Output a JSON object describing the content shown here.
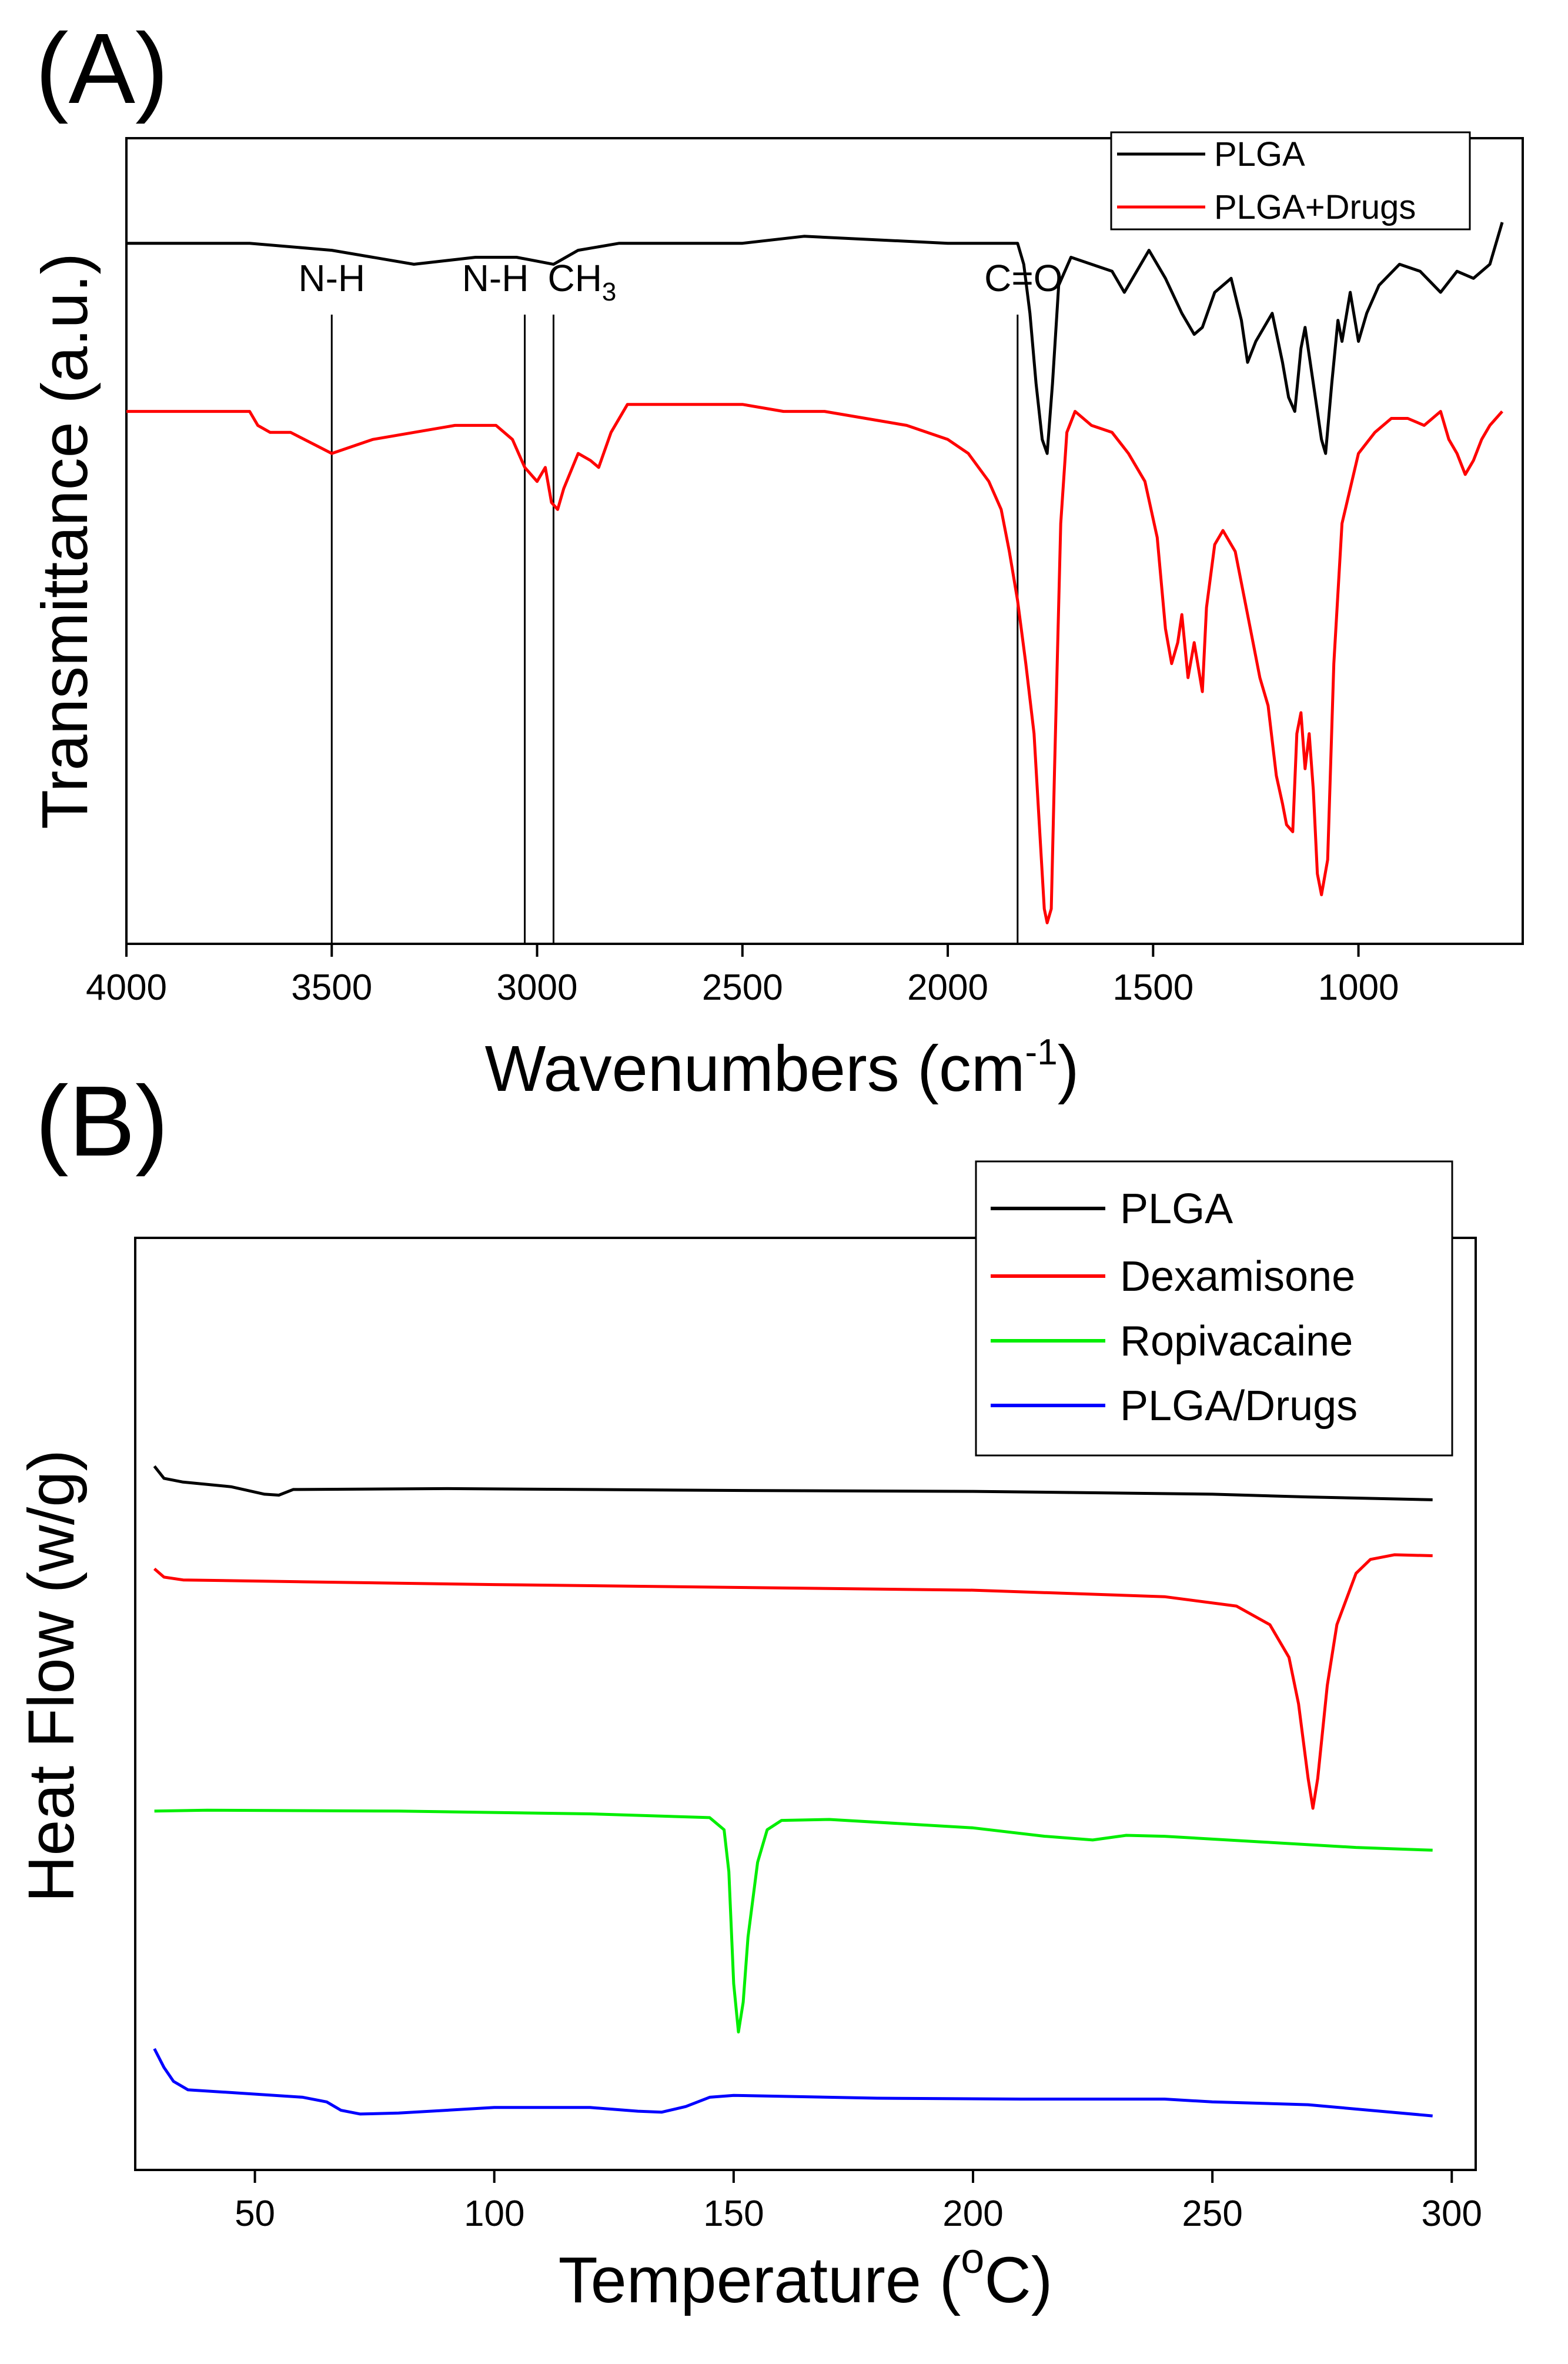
{
  "chart_data": [
    {
      "panel": "(A)",
      "type": "line",
      "title": "",
      "xlabel": "Wavenumbers (cm",
      "xlabel_sup": "-1",
      "xlabel_close": ")",
      "ylabel": "Transmittance (a.u.)",
      "xlim": [
        4000,
        600
      ],
      "ylim": [
        0,
        1.15
      ],
      "xticks": [
        4000,
        3500,
        3000,
        2500,
        2000,
        1500,
        1000
      ],
      "xtick_labels": [
        "4000",
        "3500",
        "3000",
        "2500",
        "2000",
        "1500",
        "1000"
      ],
      "legend_position": "top-right",
      "series": [
        {
          "name": "PLGA",
          "color": "#000000",
          "points": [
            [
              4000,
              1.0
            ],
            [
              3700,
              1.0
            ],
            [
              3500,
              0.99
            ],
            [
              3300,
              0.97
            ],
            [
              3150,
              0.98
            ],
            [
              3050,
              0.98
            ],
            [
              2960,
              0.97
            ],
            [
              2900,
              0.99
            ],
            [
              2800,
              1.0
            ],
            [
              2500,
              1.0
            ],
            [
              2350,
              1.01
            ],
            [
              2000,
              1.0
            ],
            [
              1850,
              1.0
            ],
            [
              1830,
              1.0
            ],
            [
              1815,
              0.97
            ],
            [
              1800,
              0.9
            ],
            [
              1785,
              0.8
            ],
            [
              1770,
              0.72
            ],
            [
              1758,
              0.7
            ],
            [
              1745,
              0.8
            ],
            [
              1730,
              0.94
            ],
            [
              1700,
              0.98
            ],
            [
              1650,
              0.97
            ],
            [
              1600,
              0.96
            ],
            [
              1570,
              0.93
            ],
            [
              1540,
              0.96
            ],
            [
              1510,
              0.99
            ],
            [
              1470,
              0.95
            ],
            [
              1430,
              0.9
            ],
            [
              1400,
              0.87
            ],
            [
              1380,
              0.88
            ],
            [
              1350,
              0.93
            ],
            [
              1310,
              0.95
            ],
            [
              1285,
              0.89
            ],
            [
              1270,
              0.83
            ],
            [
              1250,
              0.86
            ],
            [
              1210,
              0.9
            ],
            [
              1185,
              0.83
            ],
            [
              1170,
              0.78
            ],
            [
              1155,
              0.76
            ],
            [
              1140,
              0.85
            ],
            [
              1130,
              0.88
            ],
            [
              1110,
              0.8
            ],
            [
              1090,
              0.72
            ],
            [
              1080,
              0.7
            ],
            [
              1065,
              0.8
            ],
            [
              1050,
              0.89
            ],
            [
              1040,
              0.86
            ],
            [
              1020,
              0.93
            ],
            [
              1000,
              0.86
            ],
            [
              980,
              0.9
            ],
            [
              950,
              0.94
            ],
            [
              900,
              0.97
            ],
            [
              850,
              0.96
            ],
            [
              800,
              0.93
            ],
            [
              760,
              0.96
            ],
            [
              720,
              0.95
            ],
            [
              680,
              0.97
            ],
            [
              650,
              1.03
            ]
          ]
        },
        {
          "name": "PLGA+Drugs",
          "color": "#ff0000",
          "points": [
            [
              4000,
              0.76
            ],
            [
              3700,
              0.76
            ],
            [
              3680,
              0.74
            ],
            [
              3650,
              0.73
            ],
            [
              3600,
              0.73
            ],
            [
              3500,
              0.7
            ],
            [
              3400,
              0.72
            ],
            [
              3300,
              0.73
            ],
            [
              3200,
              0.74
            ],
            [
              3100,
              0.74
            ],
            [
              3060,
              0.72
            ],
            [
              3030,
              0.68
            ],
            [
              3000,
              0.66
            ],
            [
              2980,
              0.68
            ],
            [
              2965,
              0.63
            ],
            [
              2950,
              0.62
            ],
            [
              2935,
              0.65
            ],
            [
              2900,
              0.7
            ],
            [
              2870,
              0.69
            ],
            [
              2850,
              0.68
            ],
            [
              2820,
              0.73
            ],
            [
              2780,
              0.77
            ],
            [
              2700,
              0.77
            ],
            [
              2500,
              0.77
            ],
            [
              2400,
              0.76
            ],
            [
              2300,
              0.76
            ],
            [
              2200,
              0.75
            ],
            [
              2100,
              0.74
            ],
            [
              2000,
              0.72
            ],
            [
              1950,
              0.7
            ],
            [
              1900,
              0.66
            ],
            [
              1870,
              0.62
            ],
            [
              1850,
              0.56
            ],
            [
              1830,
              0.49
            ],
            [
              1810,
              0.4
            ],
            [
              1790,
              0.3
            ],
            [
              1775,
              0.15
            ],
            [
              1765,
              0.05
            ],
            [
              1758,
              0.03
            ],
            [
              1748,
              0.05
            ],
            [
              1740,
              0.25
            ],
            [
              1725,
              0.6
            ],
            [
              1710,
              0.73
            ],
            [
              1690,
              0.76
            ],
            [
              1650,
              0.74
            ],
            [
              1600,
              0.73
            ],
            [
              1560,
              0.7
            ],
            [
              1520,
              0.66
            ],
            [
              1490,
              0.58
            ],
            [
              1470,
              0.45
            ],
            [
              1455,
              0.4
            ],
            [
              1440,
              0.43
            ],
            [
              1430,
              0.47
            ],
            [
              1415,
              0.38
            ],
            [
              1400,
              0.43
            ],
            [
              1380,
              0.36
            ],
            [
              1370,
              0.48
            ],
            [
              1350,
              0.57
            ],
            [
              1330,
              0.59
            ],
            [
              1300,
              0.56
            ],
            [
              1280,
              0.5
            ],
            [
              1260,
              0.44
            ],
            [
              1240,
              0.38
            ],
            [
              1220,
              0.34
            ],
            [
              1200,
              0.24
            ],
            [
              1185,
              0.2
            ],
            [
              1175,
              0.17
            ],
            [
              1160,
              0.16
            ],
            [
              1150,
              0.3
            ],
            [
              1140,
              0.33
            ],
            [
              1130,
              0.25
            ],
            [
              1120,
              0.3
            ],
            [
              1110,
              0.22
            ],
            [
              1100,
              0.1
            ],
            [
              1090,
              0.07
            ],
            [
              1075,
              0.12
            ],
            [
              1060,
              0.4
            ],
            [
              1040,
              0.6
            ],
            [
              1020,
              0.65
            ],
            [
              1000,
              0.7
            ],
            [
              960,
              0.73
            ],
            [
              920,
              0.75
            ],
            [
              880,
              0.75
            ],
            [
              840,
              0.74
            ],
            [
              800,
              0.76
            ],
            [
              780,
              0.72
            ],
            [
              760,
              0.7
            ],
            [
              740,
              0.67
            ],
            [
              720,
              0.69
            ],
            [
              700,
              0.72
            ],
            [
              680,
              0.74
            ],
            [
              650,
              0.76
            ]
          ]
        }
      ],
      "vlines": [
        {
          "x": 3500,
          "label": "N-H"
        },
        {
          "x": 3030,
          "label": "N-H"
        },
        {
          "x": 2960,
          "label": "CH",
          "label_sub": "3"
        },
        {
          "x": 1830,
          "label": "C=O"
        }
      ]
    },
    {
      "panel": "(B)",
      "type": "line",
      "title": "",
      "xlabel": "Temperature (",
      "xlabel_sup": "o",
      "xlabel_close": "C)",
      "ylabel": "Heat Flow (w/g)",
      "xlim": [
        25,
        305
      ],
      "ylim": [
        0,
        100
      ],
      "xticks": [
        50,
        100,
        150,
        200,
        250,
        300
      ],
      "xtick_labels": [
        "50",
        "100",
        "150",
        "200",
        "250",
        "300"
      ],
      "legend_position": "top-right",
      "series": [
        {
          "name": "PLGA",
          "color": "#000000",
          "points": [
            [
              29,
              75.5
            ],
            [
              31,
              74.2
            ],
            [
              35,
              73.8
            ],
            [
              45,
              73.3
            ],
            [
              52,
              72.5
            ],
            [
              55,
              72.4
            ],
            [
              58,
              73.0
            ],
            [
              90,
              73.1
            ],
            [
              150,
              72.9
            ],
            [
              200,
              72.8
            ],
            [
              250,
              72.5
            ],
            [
              270,
              72.2
            ],
            [
              296,
              71.9
            ]
          ]
        },
        {
          "name": "Dexamisone",
          "color": "#ff0000",
          "points": [
            [
              29,
              64.5
            ],
            [
              31,
              63.6
            ],
            [
              35,
              63.3
            ],
            [
              60,
              63.1
            ],
            [
              100,
              62.8
            ],
            [
              150,
              62.5
            ],
            [
              200,
              62.2
            ],
            [
              240,
              61.5
            ],
            [
              255,
              60.5
            ],
            [
              262,
              58.5
            ],
            [
              266,
              55.0
            ],
            [
              268,
              50.0
            ],
            [
              270,
              42.0
            ],
            [
              271,
              38.8
            ],
            [
              272,
              42.0
            ],
            [
              274,
              52.0
            ],
            [
              276,
              58.5
            ],
            [
              280,
              64.0
            ],
            [
              283,
              65.5
            ],
            [
              288,
              66.0
            ],
            [
              296,
              65.9
            ]
          ]
        },
        {
          "name": "Ropivacaine",
          "color": "#00ee00",
          "points": [
            [
              29,
              38.5
            ],
            [
              40,
              38.6
            ],
            [
              80,
              38.5
            ],
            [
              120,
              38.2
            ],
            [
              145,
              37.8
            ],
            [
              148,
              36.5
            ],
            [
              149,
              32.0
            ],
            [
              150,
              20.0
            ],
            [
              151,
              14.8
            ],
            [
              152,
              18.0
            ],
            [
              153,
              25.0
            ],
            [
              155,
              33.0
            ],
            [
              157,
              36.5
            ],
            [
              160,
              37.5
            ],
            [
              170,
              37.6
            ],
            [
              200,
              36.7
            ],
            [
              215,
              35.8
            ],
            [
              225,
              35.4
            ],
            [
              232,
              35.9
            ],
            [
              240,
              35.8
            ],
            [
              260,
              35.2
            ],
            [
              280,
              34.6
            ],
            [
              296,
              34.3
            ]
          ]
        },
        {
          "name": "PLGA/Drugs",
          "color": "#0000ff",
          "points": [
            [
              29,
              13.0
            ],
            [
              31,
              11.0
            ],
            [
              33,
              9.5
            ],
            [
              36,
              8.6
            ],
            [
              45,
              8.3
            ],
            [
              60,
              7.8
            ],
            [
              65,
              7.3
            ],
            [
              68,
              6.4
            ],
            [
              72,
              6.0
            ],
            [
              80,
              6.1
            ],
            [
              100,
              6.7
            ],
            [
              120,
              6.7
            ],
            [
              130,
              6.3
            ],
            [
              135,
              6.2
            ],
            [
              140,
              6.8
            ],
            [
              145,
              7.8
            ],
            [
              150,
              8.0
            ],
            [
              180,
              7.7
            ],
            [
              210,
              7.6
            ],
            [
              240,
              7.6
            ],
            [
              250,
              7.3
            ],
            [
              270,
              7.0
            ],
            [
              296,
              5.8
            ]
          ]
        }
      ]
    }
  ]
}
